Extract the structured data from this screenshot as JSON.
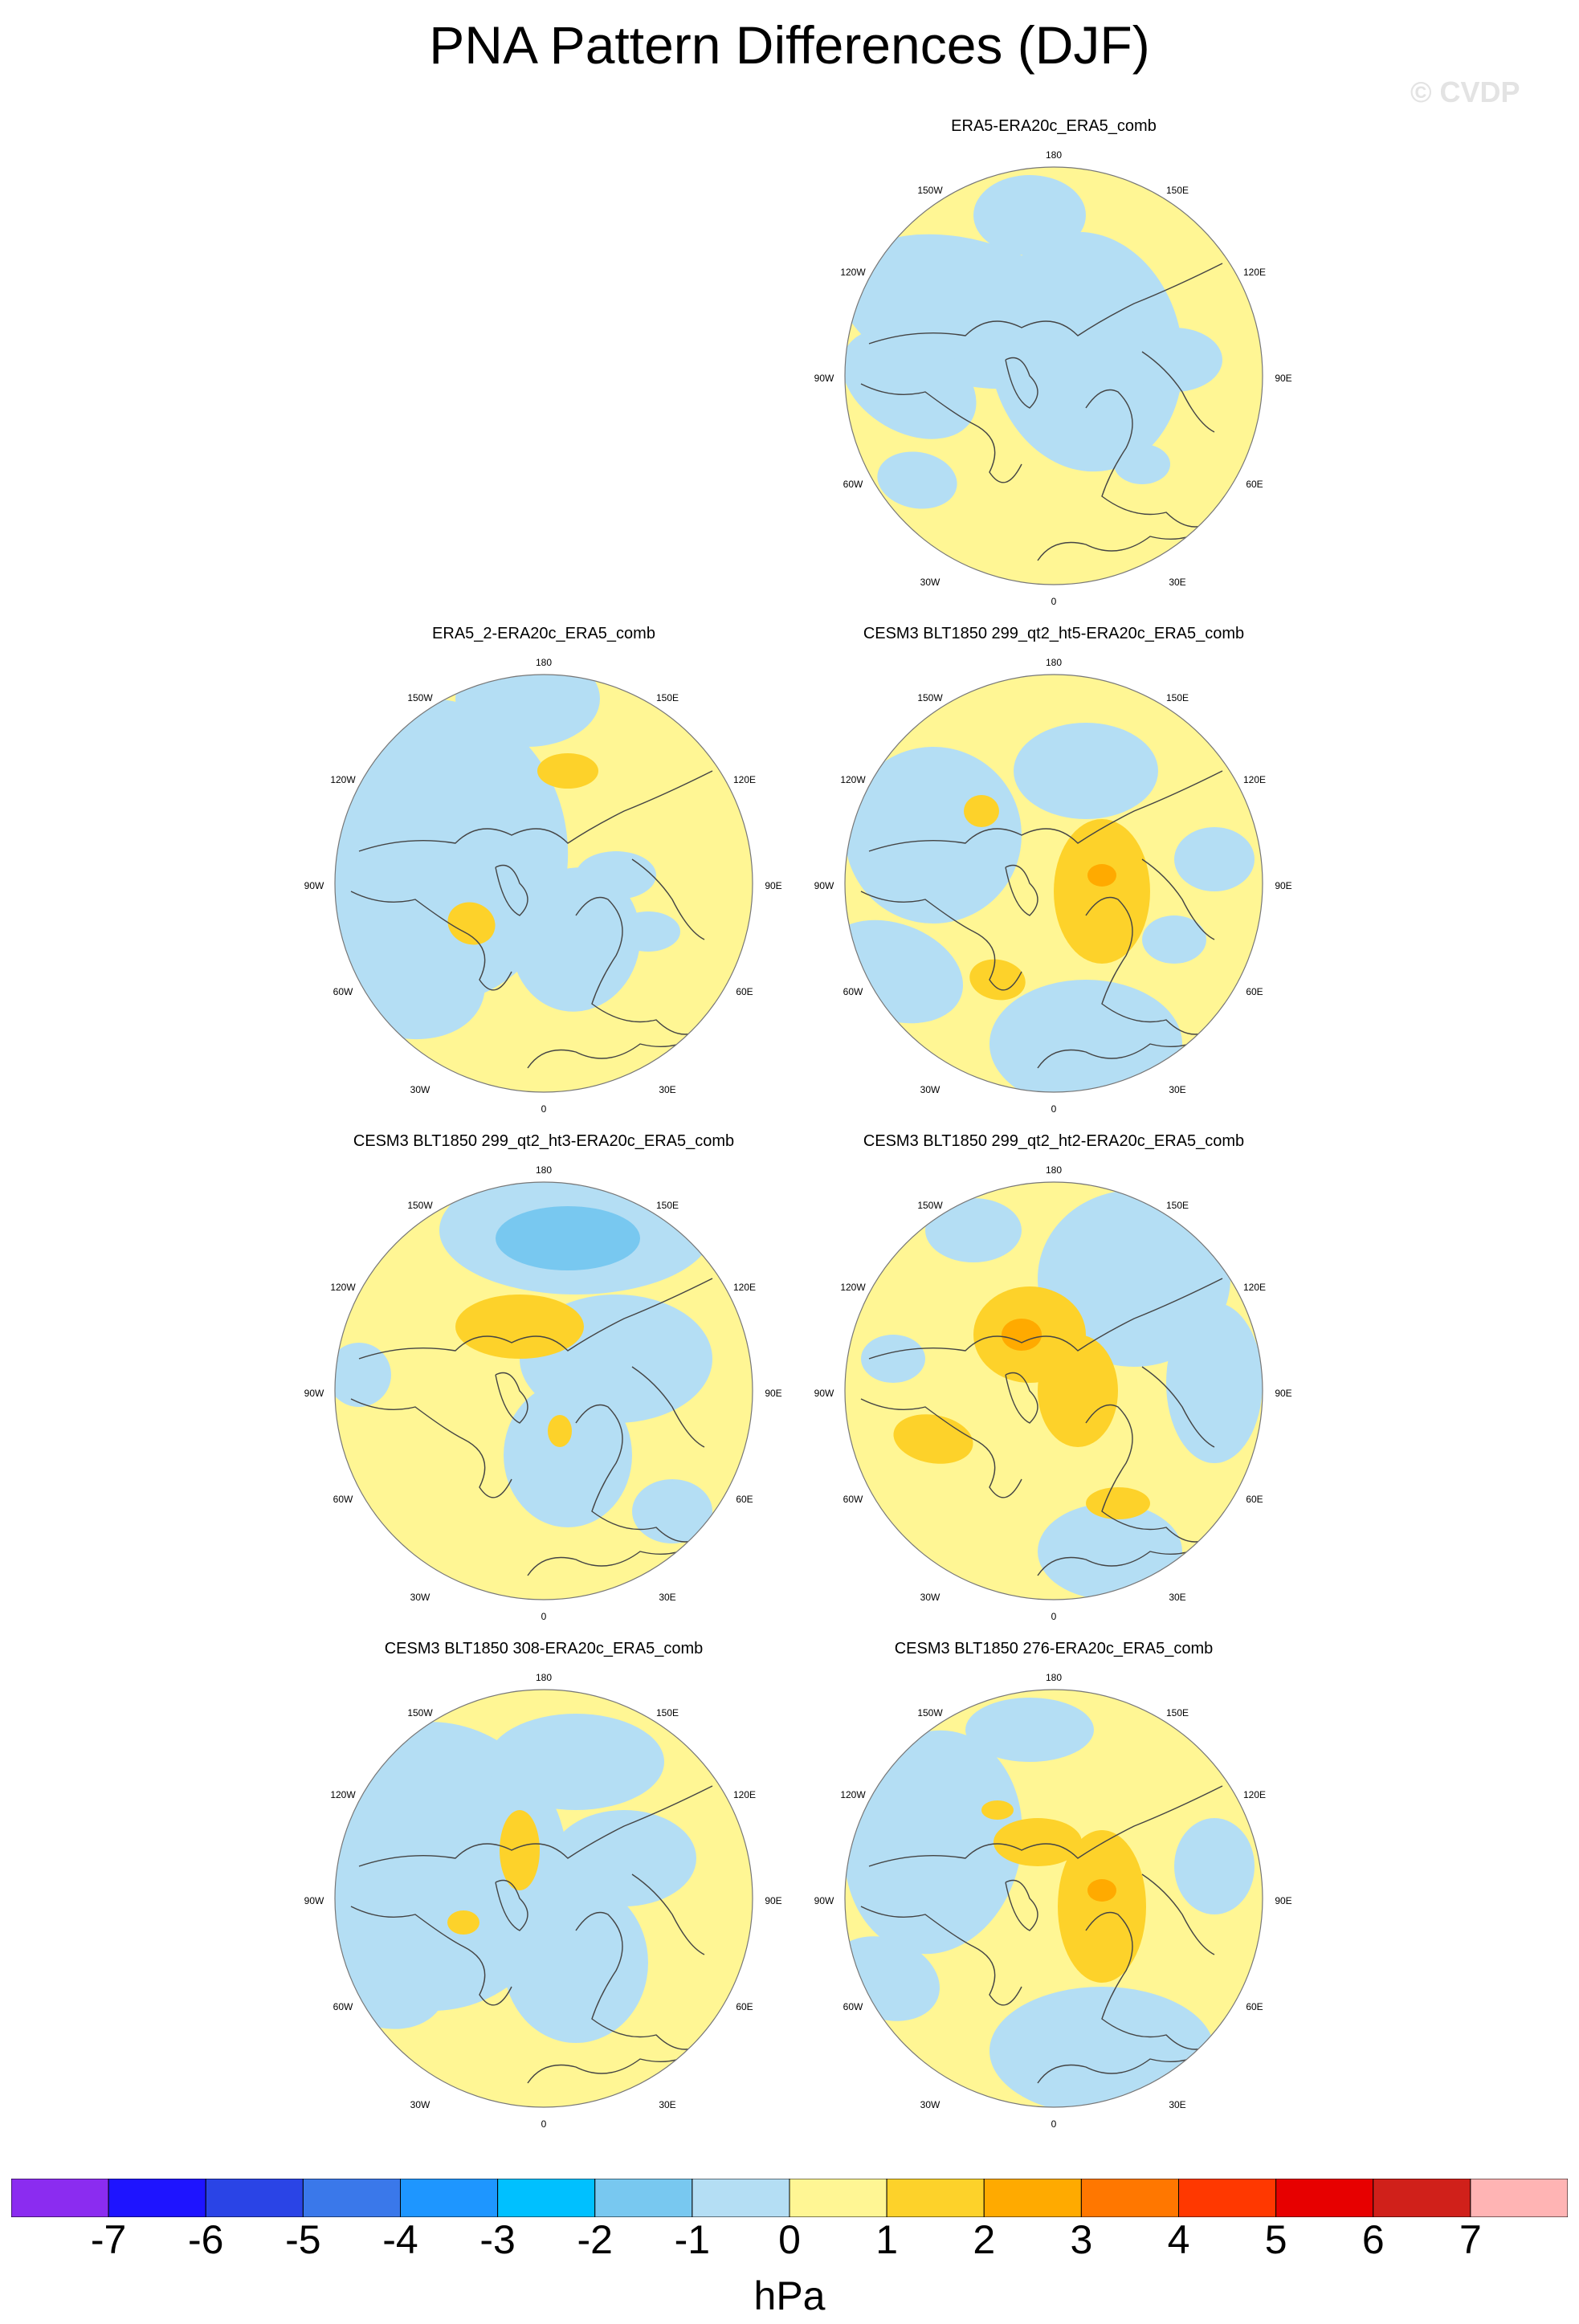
{
  "figure": {
    "title": "PNA Pattern Differences (DJF)",
    "watermark": "© CVDP",
    "units": "hPa"
  },
  "lon_labels": [
    "180",
    "150E",
    "120E",
    "90E",
    "60E",
    "30E",
    "0",
    "30W",
    "60W",
    "90W",
    "120W",
    "150W"
  ],
  "panels": [
    {
      "id": "p1",
      "title": "ERA5-ERA20c_ERA5_comb",
      "pattern": "era5"
    },
    {
      "id": "p2",
      "title": "ERA5_2-ERA20c_ERA5_comb",
      "pattern": "era5_2"
    },
    {
      "id": "p3",
      "title": "CESM3 BLT1850 299_qt2_ht5-ERA20c_ERA5_comb",
      "pattern": "ht5"
    },
    {
      "id": "p4",
      "title": "CESM3 BLT1850 299_qt2_ht3-ERA20c_ERA5_comb",
      "pattern": "ht3"
    },
    {
      "id": "p5",
      "title": "CESM3 BLT1850 299_qt2_ht2-ERA20c_ERA5_comb",
      "pattern": "ht2"
    },
    {
      "id": "p6",
      "title": "CESM3 BLT1850 308-ERA20c_ERA5_comb",
      "pattern": "b308"
    },
    {
      "id": "p7",
      "title": "CESM3 BLT1850 276-ERA20c_ERA5_comb",
      "pattern": "b276"
    }
  ],
  "colorbar": {
    "colors": [
      "#8b2cf0",
      "#1e14ff",
      "#2a44e6",
      "#3a78ea",
      "#1e96ff",
      "#00c0ff",
      "#78c8f0",
      "#b4def4",
      "#fff694",
      "#fdd22a",
      "#ffaa00",
      "#ff7700",
      "#ff3800",
      "#e70000",
      "#d0201a",
      "#ffb4b4"
    ],
    "ticks": [
      "-7",
      "-6",
      "-5",
      "-4",
      "-3",
      "-2",
      "-1",
      "0",
      "1",
      "2",
      "3",
      "4",
      "5",
      "6",
      "7"
    ]
  },
  "palette": {
    "neg1": "#b4def4",
    "pos1": "#fff694",
    "pos2": "#fdd22a",
    "pos3": "#ffaa00",
    "neg2": "#78c8f0",
    "coast": "#444444"
  }
}
